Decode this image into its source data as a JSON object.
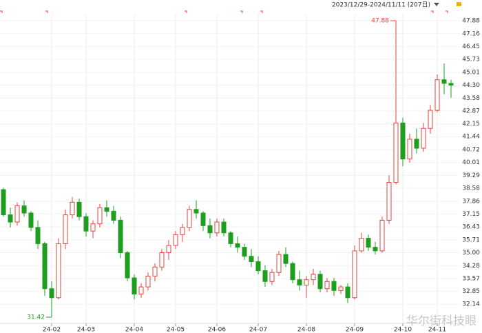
{
  "chart_data": {
    "type": "candlestick",
    "subtitle": "2023/12/29-2024/11/11 (207日)",
    "watermark": "华尔街科技眼",
    "annotations": [
      47.88,
      31.42
    ],
    "up_color": "#e8413a",
    "down_color": "#1e9e1e",
    "grid": true,
    "ylim": [
      31.42,
      47.88
    ],
    "yticks": [
      47.88,
      47.16,
      46.45,
      45.73,
      45.01,
      {
        "value": 44.3,
        "label": "44.30"
      },
      43.58,
      42.87,
      42.15,
      41.44,
      40.72,
      40.01,
      39.29,
      38.58,
      37.86,
      37.15,
      36.43,
      35.71,
      {
        "value": 35.0,
        "label": "35.00"
      },
      34.28,
      33.57,
      32.85,
      32.14
    ],
    "categories": [
      null,
      null,
      null,
      null,
      null,
      null,
      null,
      "24-02",
      null,
      null,
      null,
      null,
      "24-03",
      null,
      null,
      null,
      null,
      null,
      null,
      "24-04",
      null,
      null,
      null,
      null,
      null,
      "24-05",
      null,
      null,
      null,
      null,
      null,
      "24-06",
      null,
      null,
      null,
      null,
      null,
      "24-07",
      null,
      null,
      null,
      null,
      null,
      null,
      "24-08",
      null,
      null,
      null,
      null,
      null,
      null,
      "24-09",
      null,
      null,
      null,
      null,
      null,
      null,
      "24-10",
      null,
      null,
      null,
      null,
      "24-11",
      null,
      null
    ],
    "values": [
      [
        38.5,
        38.6,
        37.0,
        37.1
      ],
      [
        37.1,
        37.5,
        36.4,
        36.7
      ],
      [
        36.7,
        37.8,
        36.5,
        37.6
      ],
      [
        37.6,
        37.9,
        37.0,
        37.2
      ],
      [
        37.2,
        37.3,
        36.2,
        36.4
      ],
      [
        36.4,
        36.8,
        35.2,
        35.5
      ],
      [
        35.5,
        35.6,
        32.6,
        33.0
      ],
      [
        33.0,
        33.4,
        31.42,
        32.5
      ],
      [
        32.5,
        35.8,
        32.4,
        35.5
      ],
      [
        35.5,
        37.4,
        35.2,
        37.1
      ],
      [
        37.1,
        38.1,
        36.9,
        37.8
      ],
      [
        37.8,
        38.0,
        36.8,
        37.0
      ],
      [
        37.0,
        37.2,
        35.9,
        36.2
      ],
      [
        36.2,
        36.8,
        35.8,
        36.6
      ],
      [
        36.6,
        37.7,
        36.4,
        37.5
      ],
      [
        37.5,
        37.9,
        37.0,
        37.3
      ],
      [
        37.3,
        37.6,
        36.6,
        36.8
      ],
      [
        36.8,
        37.0,
        34.7,
        35.0
      ],
      [
        35.0,
        35.1,
        33.4,
        33.6
      ],
      [
        33.6,
        33.8,
        32.4,
        32.7
      ],
      [
        32.7,
        33.3,
        32.5,
        33.1
      ],
      [
        33.1,
        33.9,
        32.9,
        33.7
      ],
      [
        33.7,
        34.4,
        33.4,
        34.2
      ],
      [
        34.2,
        35.2,
        34.0,
        35.0
      ],
      [
        35.0,
        35.7,
        34.6,
        35.4
      ],
      [
        35.4,
        36.2,
        35.2,
        36.0
      ],
      [
        36.0,
        36.6,
        35.6,
        36.4
      ],
      [
        36.4,
        37.6,
        36.2,
        37.4
      ],
      [
        37.4,
        37.9,
        36.9,
        37.2
      ],
      [
        37.2,
        37.3,
        36.2,
        36.5
      ],
      [
        36.5,
        36.9,
        35.8,
        36.1
      ],
      [
        36.1,
        36.9,
        35.9,
        36.7
      ],
      [
        36.7,
        36.9,
        35.9,
        36.1
      ],
      [
        36.1,
        36.2,
        35.3,
        35.5
      ],
      [
        35.5,
        35.9,
        35.0,
        35.3
      ],
      [
        35.3,
        35.5,
        34.6,
        34.8
      ],
      [
        34.8,
        35.2,
        34.2,
        34.5
      ],
      [
        34.5,
        34.8,
        33.8,
        34.0
      ],
      [
        34.0,
        34.3,
        33.1,
        33.4
      ],
      [
        33.4,
        34.1,
        33.2,
        33.9
      ],
      [
        33.9,
        35.1,
        33.7,
        34.9
      ],
      [
        34.9,
        35.3,
        34.2,
        34.4
      ],
      [
        34.4,
        34.5,
        33.3,
        33.5
      ],
      [
        33.5,
        34.0,
        32.9,
        33.2
      ],
      [
        33.2,
        33.7,
        32.5,
        33.5
      ],
      [
        33.5,
        34.1,
        33.2,
        33.8
      ],
      [
        33.8,
        34.0,
        32.8,
        33.0
      ],
      [
        33.0,
        33.6,
        32.8,
        33.4
      ],
      [
        33.4,
        33.6,
        32.6,
        32.9
      ],
      [
        32.9,
        33.2,
        32.7,
        33.1
      ],
      [
        33.1,
        33.3,
        32.2,
        32.5
      ],
      [
        32.5,
        35.4,
        32.4,
        35.1
      ],
      [
        35.1,
        36.1,
        35.0,
        35.8
      ],
      [
        35.8,
        36.0,
        35.1,
        35.3
      ],
      [
        35.3,
        35.6,
        34.9,
        35.1
      ],
      [
        35.1,
        37.0,
        35.0,
        36.8
      ],
      [
        36.8,
        39.3,
        36.6,
        38.9
      ],
      [
        38.9,
        47.88,
        38.8,
        42.2
      ],
      [
        42.2,
        42.5,
        39.8,
        40.2
      ],
      [
        40.2,
        41.6,
        40.0,
        41.3
      ],
      [
        41.3,
        41.9,
        40.5,
        40.8
      ],
      [
        40.8,
        42.2,
        40.6,
        41.9
      ],
      [
        41.9,
        43.2,
        41.6,
        42.9
      ],
      [
        42.9,
        44.9,
        42.8,
        44.6
      ],
      [
        44.6,
        45.5,
        43.8,
        44.4
      ],
      [
        44.4,
        44.6,
        43.6,
        44.3
      ]
    ]
  }
}
